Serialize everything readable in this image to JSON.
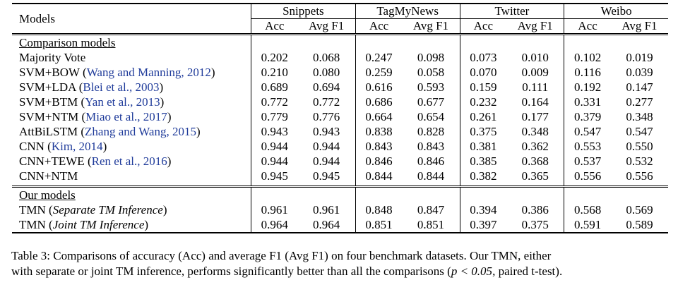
{
  "table": {
    "header_models": "Models",
    "datasets": [
      "Snippets",
      "TagMyNews",
      "Twitter",
      "Weibo"
    ],
    "metrics": [
      "Acc",
      "Avg F1"
    ],
    "groups": [
      {
        "title": "Comparison models",
        "rows": [
          {
            "name": "Majority Vote",
            "cite": "",
            "italic": "",
            "values": [
              "0.202",
              "0.068",
              "0.247",
              "0.098",
              "0.073",
              "0.010",
              "0.102",
              "0.019"
            ],
            "bold": []
          },
          {
            "name": "SVM+BOW",
            "cite": "Wang and Manning, 2012",
            "italic": "",
            "values": [
              "0.210",
              "0.080",
              "0.259",
              "0.058",
              "0.070",
              "0.009",
              "0.116",
              "0.039"
            ],
            "bold": []
          },
          {
            "name": "SVM+LDA",
            "cite": "Blei et al., 2003",
            "italic": "",
            "values": [
              "0.689",
              "0.694",
              "0.616",
              "0.593",
              "0.159",
              "0.111",
              "0.192",
              "0.147"
            ],
            "bold": []
          },
          {
            "name": "SVM+BTM",
            "cite": "Yan et al., 2013",
            "italic": "",
            "values": [
              "0.772",
              "0.772",
              "0.686",
              "0.677",
              "0.232",
              "0.164",
              "0.331",
              "0.277"
            ],
            "bold": []
          },
          {
            "name": "SVM+NTM",
            "cite": "Miao et al., 2017",
            "italic": "",
            "values": [
              "0.779",
              "0.776",
              "0.664",
              "0.654",
              "0.261",
              "0.177",
              "0.379",
              "0.348"
            ],
            "bold": []
          },
          {
            "name": "AttBiLSTM",
            "cite": "Zhang and Wang, 2015",
            "italic": "",
            "values": [
              "0.943",
              "0.943",
              "0.838",
              "0.828",
              "0.375",
              "0.348",
              "0.547",
              "0.547"
            ],
            "bold": []
          },
          {
            "name": "CNN",
            "cite": "Kim, 2014",
            "italic": "",
            "values": [
              "0.944",
              "0.944",
              "0.843",
              "0.843",
              "0.381",
              "0.362",
              "0.553",
              "0.550"
            ],
            "bold": []
          },
          {
            "name": "CNN+TEWE",
            "cite": "Ren et al., 2016",
            "italic": "",
            "values": [
              "0.944",
              "0.944",
              "0.846",
              "0.846",
              "0.385",
              "0.368",
              "0.537",
              "0.532"
            ],
            "bold": []
          },
          {
            "name": "CNN+NTM",
            "cite": "",
            "italic": "",
            "values": [
              "0.945",
              "0.945",
              "0.844",
              "0.844",
              "0.382",
              "0.365",
              "0.556",
              "0.556"
            ],
            "bold": []
          }
        ]
      },
      {
        "title": "Our models",
        "rows": [
          {
            "name": "TMN",
            "cite": "",
            "italic": "Separate TM Inference",
            "values": [
              "0.961",
              "0.961",
              "0.848",
              "0.847",
              "0.394",
              "0.386",
              "0.568",
              "0.569"
            ],
            "bold": [
              5
            ]
          },
          {
            "name": "TMN",
            "cite": "",
            "italic": "Joint TM Inference",
            "values": [
              "0.964",
              "0.964",
              "0.851",
              "0.851",
              "0.397",
              "0.375",
              "0.591",
              "0.589"
            ],
            "bold": [
              0,
              1,
              2,
              3,
              4,
              6,
              7
            ]
          }
        ]
      }
    ]
  },
  "caption": {
    "line1": "Table 3: Comparisons of accuracy (Acc) and average F1 (Avg F1) on four benchmark datasets. Our TMN, either",
    "line2_pre": "with separate or joint TM inference, performs significantly better than all the comparisons (",
    "line2_math": "p < 0.05",
    "line2_post": ", paired t-test)."
  }
}
